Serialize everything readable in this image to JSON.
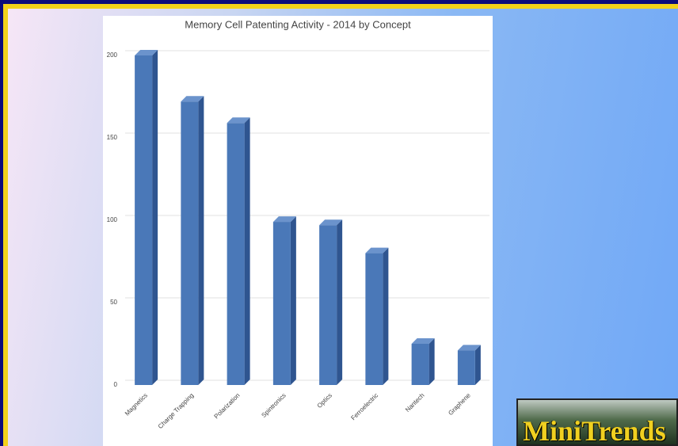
{
  "chart_data": {
    "type": "bar",
    "title": "Memory Cell Patenting Activity - 2014 by Concept",
    "categories": [
      "Magnetics",
      "Charge Trapping",
      "Polarization",
      "Spintronics",
      "Optics",
      "Ferroelectric",
      "Nantech",
      "Graphene"
    ],
    "values": [
      200,
      172,
      159,
      99,
      97,
      80,
      25,
      21
    ],
    "color": "#4a78b8",
    "ylim": [
      0,
      200
    ],
    "yticks": [
      0,
      50,
      100,
      150,
      200
    ],
    "grid": true
  },
  "logo": "MiniTrends"
}
